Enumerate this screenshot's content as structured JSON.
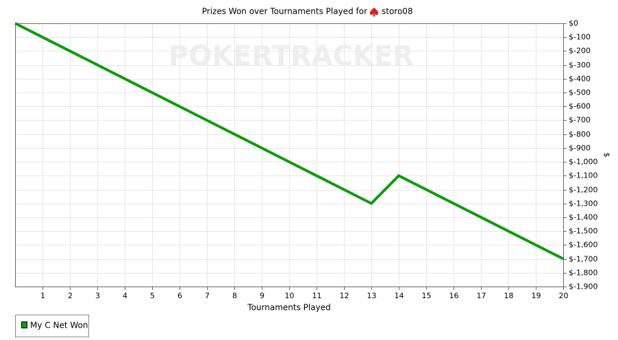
{
  "chart_data": {
    "type": "line",
    "title": "Prizes Won over Tournaments Played for",
    "player": "storo08",
    "watermark": "POKERTRACKER",
    "x_label": "Tournaments Played",
    "y_label": "$",
    "x": [
      0,
      1,
      2,
      3,
      4,
      5,
      6,
      7,
      8,
      9,
      10,
      11,
      12,
      13,
      14,
      15,
      16,
      17,
      18,
      19,
      20
    ],
    "series": [
      {
        "name": "My C Net Won",
        "color": "#119911",
        "values": [
          0,
          -100,
          -200,
          -300,
          -400,
          -500,
          -600,
          -700,
          -800,
          -900,
          -1000,
          -1100,
          -1200,
          -1300,
          -1100,
          -1200,
          -1300,
          -1400,
          -1500,
          -1600,
          -1700
        ]
      }
    ],
    "xlim": [
      0,
      20
    ],
    "xticks": [
      1,
      2,
      3,
      4,
      5,
      6,
      7,
      8,
      9,
      10,
      11,
      12,
      13,
      14,
      15,
      16,
      17,
      18,
      19,
      20
    ],
    "ylim": [
      -1900,
      0
    ],
    "yticks": [
      {
        "value": 0,
        "label": "$0"
      },
      {
        "value": -100,
        "label": "$-100"
      },
      {
        "value": -200,
        "label": "$-200"
      },
      {
        "value": -300,
        "label": "$-300"
      },
      {
        "value": -400,
        "label": "$-400"
      },
      {
        "value": -500,
        "label": "$-500"
      },
      {
        "value": -600,
        "label": "$-600"
      },
      {
        "value": -700,
        "label": "$-700"
      },
      {
        "value": -800,
        "label": "$-800"
      },
      {
        "value": -900,
        "label": "$-900"
      },
      {
        "value": -1000,
        "label": "$-1,000"
      },
      {
        "value": -1100,
        "label": "$-1,100"
      },
      {
        "value": -1200,
        "label": "$-1,200"
      },
      {
        "value": -1300,
        "label": "$-1,300"
      },
      {
        "value": -1400,
        "label": "$-1,400"
      },
      {
        "value": -1500,
        "label": "$-1,500"
      },
      {
        "value": -1600,
        "label": "$-1,600"
      },
      {
        "value": -1700,
        "label": "$-1,700"
      },
      {
        "value": -1800,
        "label": "$-1,800"
      },
      {
        "value": -1900,
        "label": "$-1,900"
      }
    ],
    "grid": true
  }
}
